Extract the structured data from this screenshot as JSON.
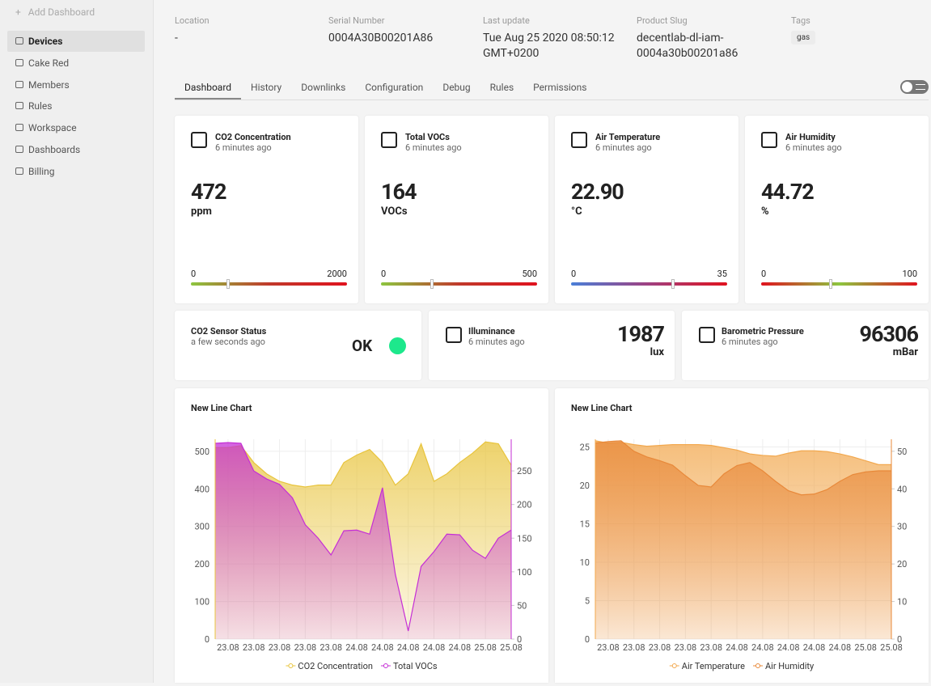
{
  "sidebar": {
    "add": "Add Dashboard",
    "items": [
      "Devices",
      "Cake Red",
      "Members",
      "Rules",
      "Workspace",
      "Dashboards",
      "Billing"
    ]
  },
  "info": [
    {
      "label": "Location",
      "value": "-"
    },
    {
      "label": "Serial Number",
      "value": "0004A30B00201A86"
    },
    {
      "label": "Last update",
      "value": "Tue Aug 25 2020 08:50:12 GMT+0200"
    },
    {
      "label": "Product Slug",
      "value": "decentlab-dl-iam-0004a30b00201a86"
    },
    {
      "label": "Tags",
      "value": "gas"
    }
  ],
  "tabs": [
    "Dashboard",
    "History",
    "Downlinks",
    "Configuration",
    "Debug",
    "Rules",
    "Permissions"
  ],
  "gauges": [
    {
      "title": "CO2 Concentration",
      "time": "6 minutes ago",
      "value": 472,
      "unit": "ppm",
      "min": 0,
      "max": 2000
    },
    {
      "title": "Total VOCs",
      "time": "6 minutes ago",
      "value": 164,
      "unit": "VOCs",
      "min": 0,
      "max": 500
    },
    {
      "title": "Air Temperature",
      "time": "6 minutes ago",
      "value": 22.9,
      "value_label": "22.90",
      "unit": "°C",
      "min": 0,
      "max": 35
    },
    {
      "title": "Air Humidity",
      "time": "6 minutes ago",
      "value": 44.72,
      "unit": "%",
      "min": 0,
      "max": 100
    }
  ],
  "status": {
    "title": "CO2 Sensor Status",
    "time": "a few seconds ago",
    "value": "OK"
  },
  "stats": [
    {
      "title": "Illuminance",
      "time": "6 minutes ago",
      "value": 1987,
      "unit": "lux"
    },
    {
      "title": "Barometric Pressure",
      "time": "6 minutes ago",
      "value": 96306,
      "unit": "mBar"
    }
  ],
  "chart_data": [
    {
      "type": "area",
      "title": "New Line Chart",
      "categories": [
        null,
        "23.08",
        null,
        "23.08",
        null,
        "23.08",
        null,
        "23.08",
        null,
        "23.08",
        null,
        "24.08",
        null,
        "24.08",
        null,
        "24.08",
        null,
        "24.08",
        null,
        "24.08",
        null,
        "25.08",
        null,
        "25.08"
      ],
      "ylim": [
        0,
        532
      ],
      "yticks": [
        0,
        100,
        200,
        300,
        400,
        500
      ],
      "y2lim": [
        0,
        297
      ],
      "y2ticks": [
        0,
        50,
        100,
        150,
        200,
        250
      ],
      "grid": true,
      "series": [
        {
          "name": "CO2 Concentration",
          "color": "#e8c43c",
          "values": [
            510,
            510,
            515,
            470,
            440,
            420,
            410,
            405,
            410,
            410,
            470,
            490,
            505,
            470,
            410,
            440,
            520,
            420,
            440,
            470,
            495,
            525,
            520,
            463
          ]
        },
        {
          "name": "Total VOCs",
          "color": "#c52fd6",
          "axis": "y2",
          "values": [
            291,
            292,
            291,
            250,
            238,
            230,
            210,
            170,
            150,
            125,
            161,
            162,
            156,
            225,
            96,
            12,
            108,
            130,
            156,
            155,
            132,
            120,
            150,
            162
          ]
        }
      ]
    },
    {
      "type": "area",
      "title": "New Line Chart",
      "categories": [
        null,
        "23.08",
        null,
        "23.08",
        null,
        "23.08",
        null,
        "23.08",
        null,
        "23.08",
        null,
        "24.08",
        null,
        "24.08",
        null,
        "24.08",
        null,
        "24.08",
        null,
        "24.08",
        null,
        "25.08",
        null,
        "25.08"
      ],
      "ylim": [
        0,
        26
      ],
      "yticks": [
        0,
        5,
        10,
        15,
        20,
        25
      ],
      "y2lim": [
        0,
        53.2
      ],
      "y2ticks": [
        0,
        10,
        20,
        30,
        40,
        50
      ],
      "grid": true,
      "series": [
        {
          "name": "Air Temperature",
          "color": "#f2a84e",
          "values": [
            25.8,
            25.5,
            25.6,
            25.3,
            25.1,
            25.2,
            25.3,
            25.3,
            25.3,
            25.2,
            24.9,
            24.6,
            24.1,
            23.9,
            23.8,
            24.2,
            24.5,
            24.5,
            24.4,
            24.1,
            23.7,
            23.2,
            22.7,
            22.7
          ]
        },
        {
          "name": "Air Humidity",
          "color": "#e8893a",
          "axis": "y2",
          "values": [
            52.2,
            52.6,
            52.8,
            50,
            48.5,
            47.5,
            46.3,
            43.5,
            40.9,
            40.5,
            44,
            46.2,
            47,
            44.8,
            42,
            39.5,
            38.4,
            38.6,
            39.8,
            42,
            43.8,
            44.5,
            44.8,
            44.8
          ]
        }
      ]
    }
  ]
}
